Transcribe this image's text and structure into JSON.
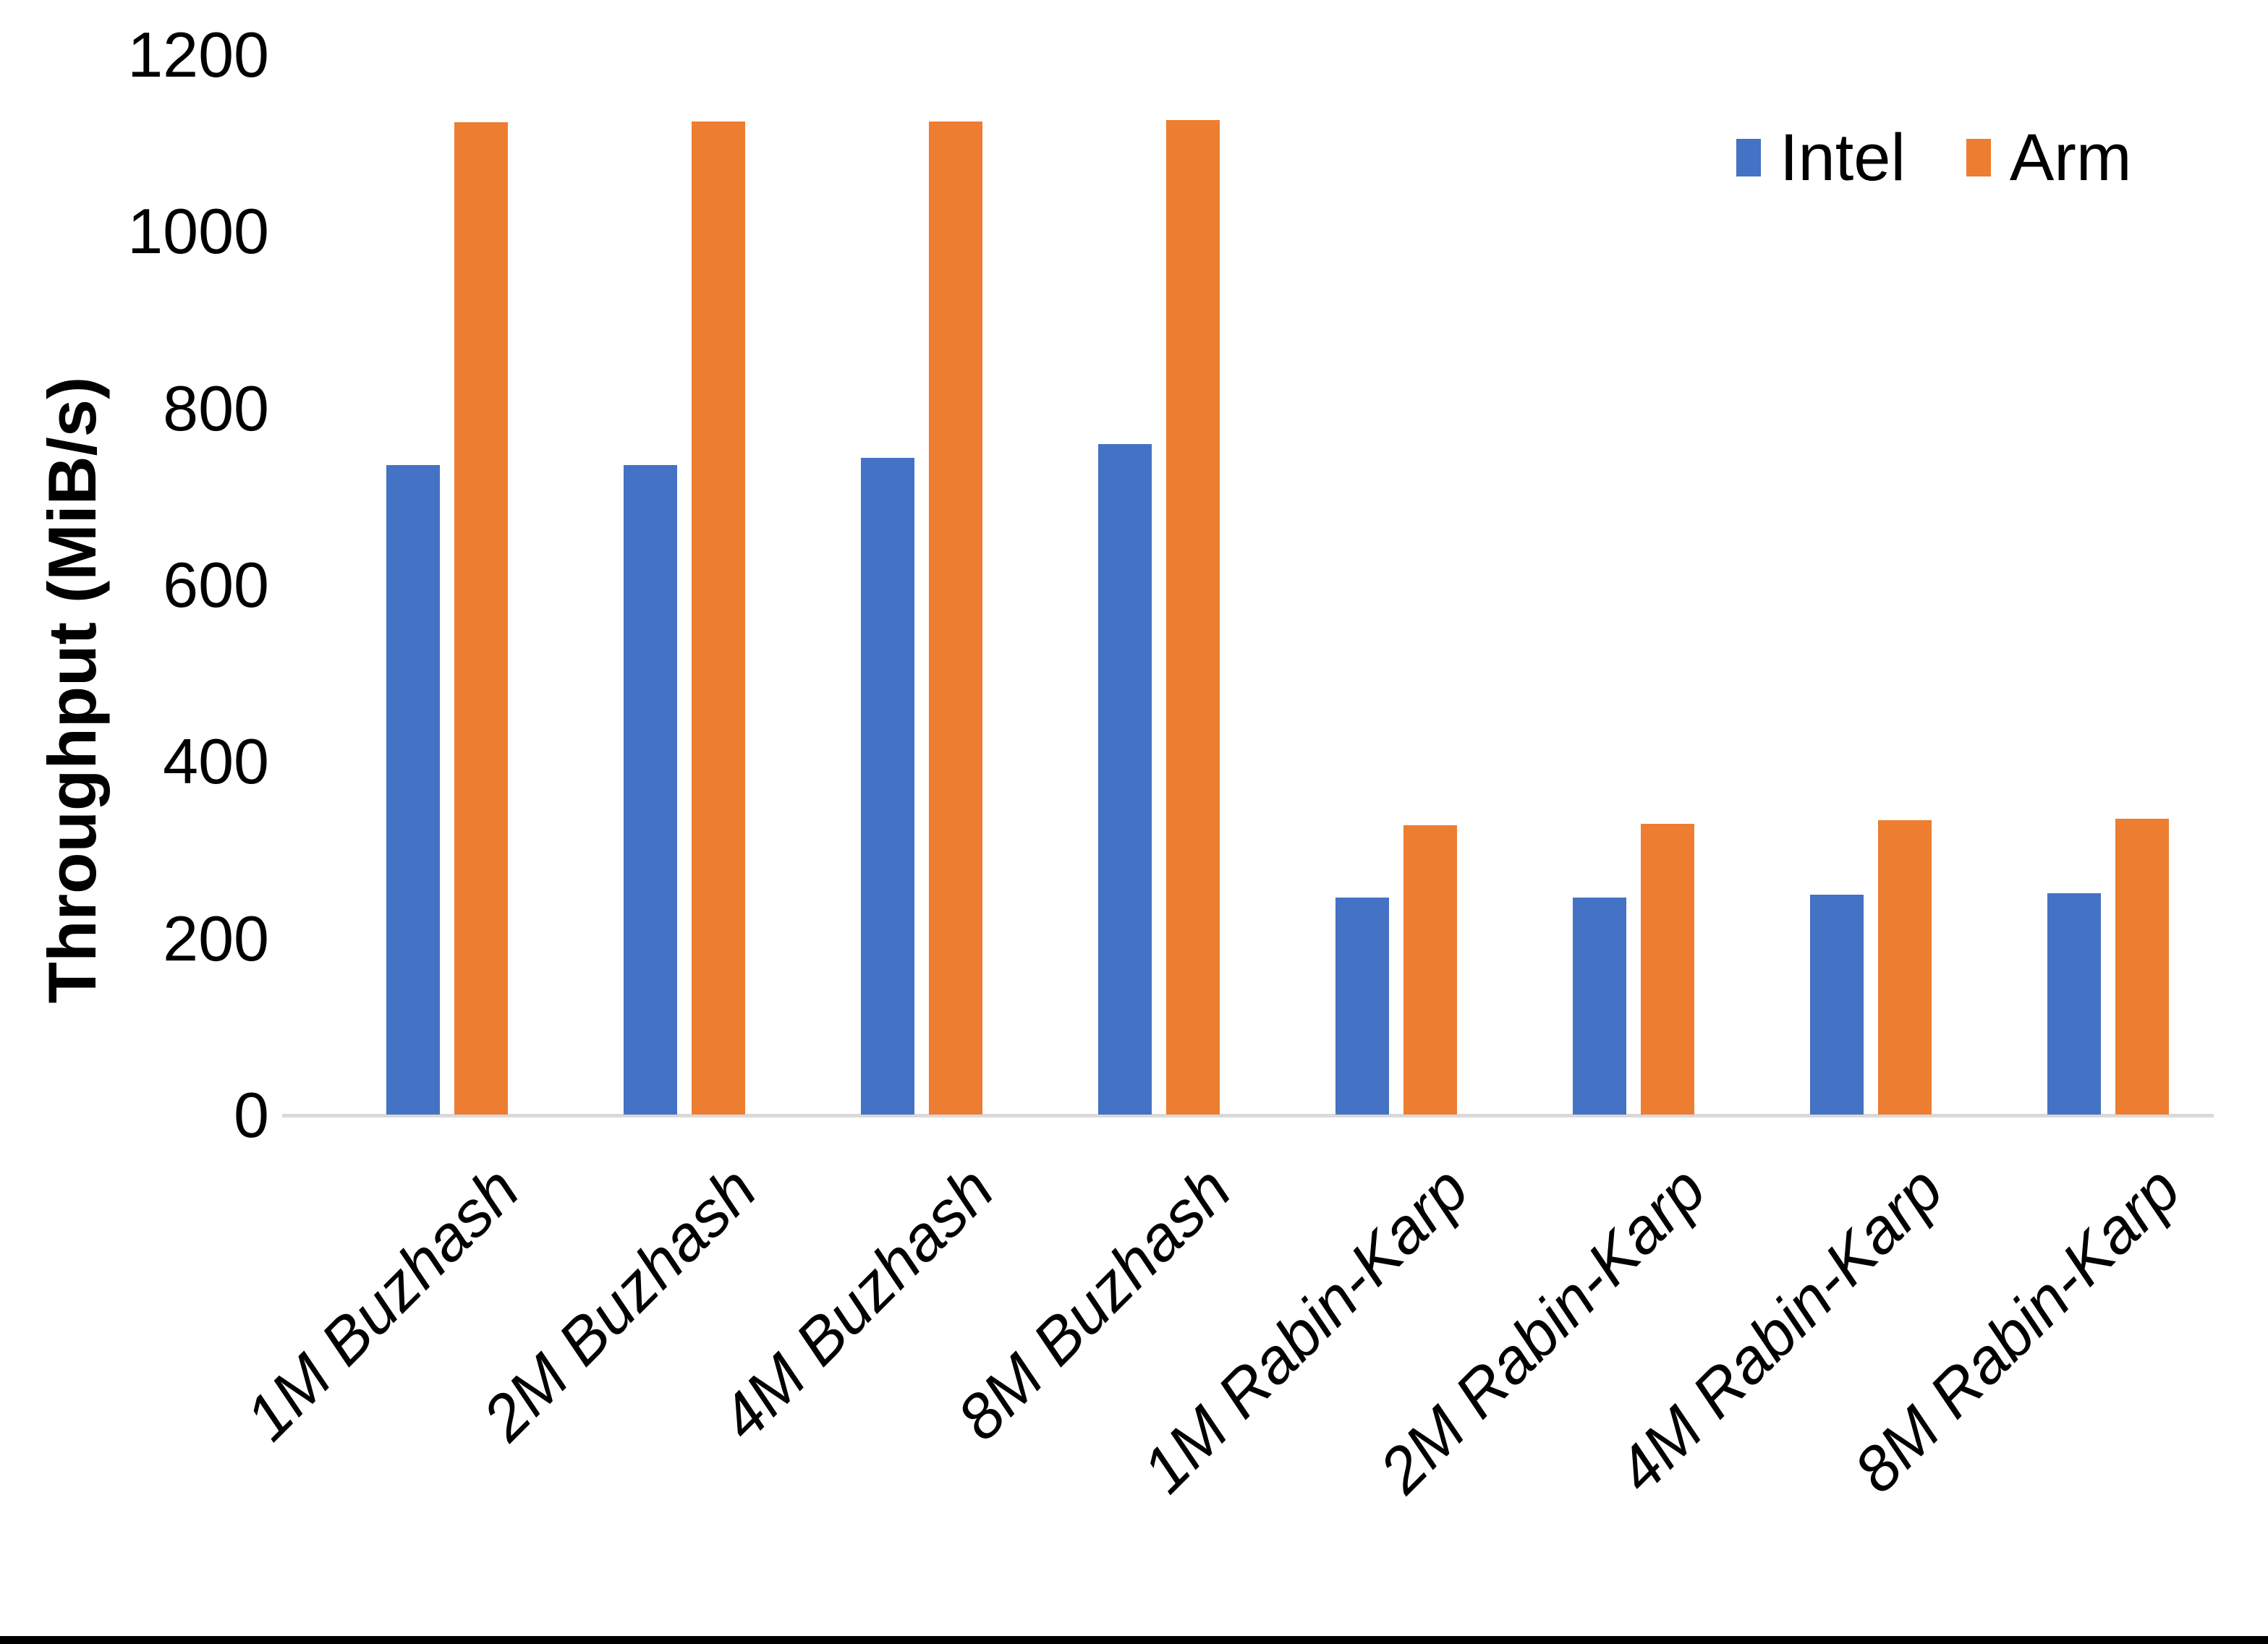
{
  "chart_data": {
    "type": "bar",
    "title": "",
    "ylabel": "Throughput (MiB/s)",
    "xlabel": "",
    "categories": [
      "1M Buzhash",
      "2M Buzhash",
      "4M Buzhash",
      "8M Buzhash",
      "1M Rabin-Karp",
      "2M Rabin-Karp",
      "4M Rabin-Karp",
      "8M Rabin-Karp"
    ],
    "series": [
      {
        "name": "Intel",
        "color": "#4472C4",
        "values": [
          736,
          736,
          744,
          760,
          246,
          246,
          250,
          251
        ]
      },
      {
        "name": "Arm",
        "color": "#ED7D31",
        "values": [
          1124,
          1125,
          1125,
          1126,
          328,
          330,
          334,
          336
        ]
      }
    ],
    "ylim": [
      0,
      1200
    ],
    "yticks": [
      0,
      200,
      400,
      600,
      800,
      1000,
      1200
    ],
    "grid": false,
    "legend_position": "top-right",
    "axis_line_color": "#d9d9d9",
    "text_color": "#000000"
  }
}
